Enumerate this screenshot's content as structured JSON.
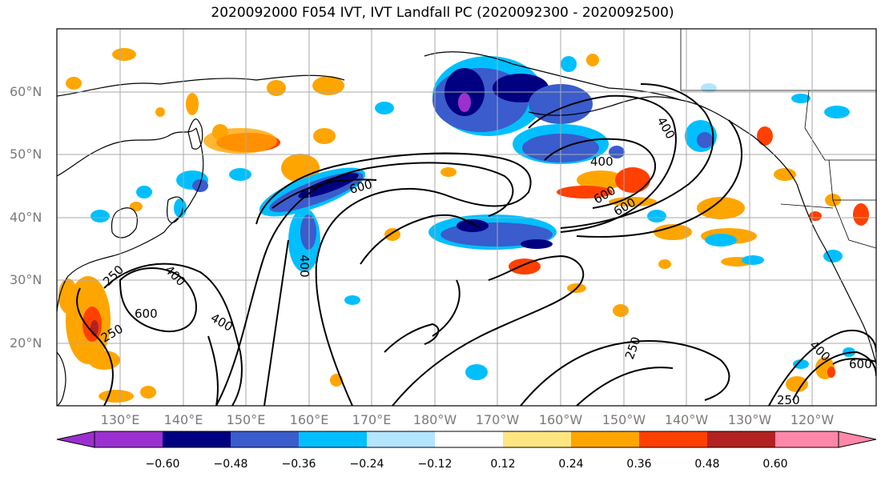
{
  "title": "2020092000 F054 IVT, IVT Landfall PC (2020092300 - 2020092500)",
  "map": {
    "lat_labels": [
      "60°N",
      "50°N",
      "40°N",
      "30°N",
      "20°N"
    ],
    "lon_labels": [
      "130°E",
      "140°E",
      "150°E",
      "160°E",
      "170°E",
      "180°W",
      "170°W",
      "160°W",
      "150°W",
      "140°W",
      "130°W",
      "120°W"
    ],
    "contour_labels": [
      "400",
      "600",
      "400",
      "600",
      "400",
      "250",
      "400",
      "600",
      "250",
      "400",
      "600",
      "250",
      "250",
      "400",
      "600"
    ],
    "colors": {
      "neg_060": "#9b30d0",
      "neg_048": "#000080",
      "neg_036": "#3a5ccc",
      "neg_024": "#00bfff",
      "neg_012": "#b3e5ff",
      "zero": "#ffffff",
      "pos_012": "#ffe680",
      "pos_024": "#ffa500",
      "pos_036": "#ff4000",
      "pos_048": "#b22222",
      "pos_060": "#ff88aa"
    }
  },
  "colorbar": {
    "ticks": [
      "−0.60",
      "−0.48",
      "−0.36",
      "−0.24",
      "−0.12",
      "0.12",
      "0.24",
      "0.36",
      "0.48",
      "0.60"
    ]
  }
}
